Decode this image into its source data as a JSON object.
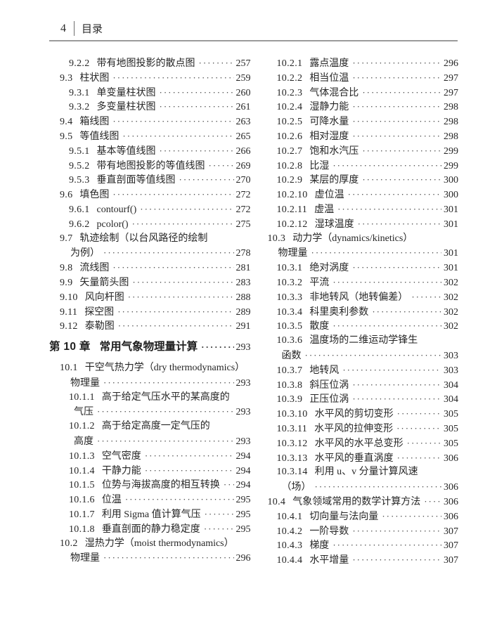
{
  "page": {
    "number": "4",
    "header_title": "目录"
  },
  "colors": {
    "text": "#262626",
    "header_rule": "#9b9b9b",
    "background": "#ffffff",
    "leader_dots": "#3d3d3d"
  },
  "toc": {
    "columns": {
      "left": [
        {
          "level": "l2",
          "num": "9.2.2",
          "text": "带有地图投影的散点图",
          "page": "257"
        },
        {
          "level": "l1",
          "num": "9.3",
          "text": "柱状图",
          "page": "259"
        },
        {
          "level": "l2",
          "num": "9.3.1",
          "text": "单变量柱状图",
          "page": "260"
        },
        {
          "level": "l2",
          "num": "9.3.2",
          "text": "多变量柱状图",
          "page": "261"
        },
        {
          "level": "l1",
          "num": "9.4",
          "text": "箱线图",
          "page": "263"
        },
        {
          "level": "l1",
          "num": "9.5",
          "text": "等值线图",
          "page": "265"
        },
        {
          "level": "l2",
          "num": "9.5.1",
          "text": "基本等值线图",
          "page": "266"
        },
        {
          "level": "l2",
          "num": "9.5.2",
          "text": "带有地图投影的等值线图",
          "page": "269"
        },
        {
          "level": "l2",
          "num": "9.5.3",
          "text": "垂直剖面等值线图",
          "page": "270"
        },
        {
          "level": "l1",
          "num": "9.6",
          "text": "填色图",
          "page": "272"
        },
        {
          "level": "l2",
          "num": "9.6.1",
          "text": "contourf()",
          "page": "272"
        },
        {
          "level": "l2",
          "num": "9.6.2",
          "text": "pcolor()",
          "page": "275"
        },
        {
          "level": "l1",
          "num": "9.7",
          "text": "轨迹绘制（以台风路径的绘制",
          "page": ""
        },
        {
          "level": "c1",
          "num": "",
          "text": "为例）",
          "page": "278"
        },
        {
          "level": "l1",
          "num": "9.8",
          "text": "流线图",
          "page": "281"
        },
        {
          "level": "l1",
          "num": "9.9",
          "text": "矢量箭头图",
          "page": "283"
        },
        {
          "level": "l1",
          "num": "9.10",
          "text": "风向杆图",
          "page": "288"
        },
        {
          "level": "l1",
          "num": "9.11",
          "text": "探空图",
          "page": "289"
        },
        {
          "level": "l1",
          "num": "9.12",
          "text": "泰勒图",
          "page": "291"
        },
        {
          "level": "chapter",
          "num": "第 10 章",
          "text": "常用气象物理量计算",
          "page": "293"
        },
        {
          "level": "l1",
          "num": "10.1",
          "text": "干空气热力学（dry thermodynamics）",
          "page": ""
        },
        {
          "level": "c1",
          "num": "",
          "text": "物理量",
          "page": "293"
        },
        {
          "level": "l2",
          "num": "10.1.1",
          "text": "高于给定气压水平的某高度的",
          "page": ""
        },
        {
          "level": "c2",
          "num": "",
          "text": "气压",
          "page": "293"
        },
        {
          "level": "l2",
          "num": "10.1.2",
          "text": "高于给定高度一定气压的",
          "page": ""
        },
        {
          "level": "c2",
          "num": "",
          "text": "高度",
          "page": "293"
        },
        {
          "level": "l2",
          "num": "10.1.3",
          "text": "空气密度",
          "page": "294"
        },
        {
          "level": "l2",
          "num": "10.1.4",
          "text": "干静力能",
          "page": "294"
        },
        {
          "level": "l2",
          "num": "10.1.5",
          "text": "位势与海拔高度的相互转换",
          "page": "294"
        },
        {
          "level": "l2",
          "num": "10.1.6",
          "text": "位温",
          "page": "295"
        },
        {
          "level": "l2",
          "num": "10.1.7",
          "text": "利用 Sigma 值计算气压",
          "page": "295"
        },
        {
          "level": "l2",
          "num": "10.1.8",
          "text": "垂直剖面的静力稳定度",
          "page": "295"
        },
        {
          "level": "l1",
          "num": "10.2",
          "text": "湿热力学（moist thermodynamics）",
          "page": ""
        },
        {
          "level": "c1",
          "num": "",
          "text": "物理量",
          "page": "296"
        }
      ],
      "right": [
        {
          "level": "l2",
          "num": "10.2.1",
          "text": "露点温度",
          "page": "296"
        },
        {
          "level": "l2",
          "num": "10.2.2",
          "text": "相当位温",
          "page": "297"
        },
        {
          "level": "l2",
          "num": "10.2.3",
          "text": "气体混合比",
          "page": "297"
        },
        {
          "level": "l2",
          "num": "10.2.4",
          "text": "湿静力能",
          "page": "298"
        },
        {
          "level": "l2",
          "num": "10.2.5",
          "text": "可降水量",
          "page": "298"
        },
        {
          "level": "l2",
          "num": "10.2.6",
          "text": "相对湿度",
          "page": "298"
        },
        {
          "level": "l2",
          "num": "10.2.7",
          "text": "饱和水汽压",
          "page": "299"
        },
        {
          "level": "l2",
          "num": "10.2.8",
          "text": "比湿",
          "page": "299"
        },
        {
          "level": "l2",
          "num": "10.2.9",
          "text": "某层的厚度",
          "page": "300"
        },
        {
          "level": "l2",
          "num": "10.2.10",
          "text": "虚位温",
          "page": "300"
        },
        {
          "level": "l2",
          "num": "10.2.11",
          "text": "虚温",
          "page": "301"
        },
        {
          "level": "l2",
          "num": "10.2.12",
          "text": "湿球温度",
          "page": "301"
        },
        {
          "level": "l1",
          "num": "10.3",
          "text": "动力学（dynamics/kinetics）",
          "page": ""
        },
        {
          "level": "c1",
          "num": "",
          "text": "物理量",
          "page": "301"
        },
        {
          "level": "l2",
          "num": "10.3.1",
          "text": "绝对涡度",
          "page": "301"
        },
        {
          "level": "l2",
          "num": "10.3.2",
          "text": "平流",
          "page": "302"
        },
        {
          "level": "l2",
          "num": "10.3.3",
          "text": "非地转风（地转偏差）",
          "page": "302"
        },
        {
          "level": "l2",
          "num": "10.3.4",
          "text": "科里奥利参数",
          "page": "302"
        },
        {
          "level": "l2",
          "num": "10.3.5",
          "text": "散度",
          "page": "302"
        },
        {
          "level": "l2",
          "num": "10.3.6",
          "text": "温度场的二维运动学锋生",
          "page": ""
        },
        {
          "level": "c2",
          "num": "",
          "text": "函数",
          "page": "303"
        },
        {
          "level": "l2",
          "num": "10.3.7",
          "text": "地转风",
          "page": "303"
        },
        {
          "level": "l2",
          "num": "10.3.8",
          "text": "斜压位涡",
          "page": "304"
        },
        {
          "level": "l2",
          "num": "10.3.9",
          "text": "正压位涡",
          "page": "304"
        },
        {
          "level": "l2",
          "num": "10.3.10",
          "text": "水平风的剪切变形",
          "page": "305"
        },
        {
          "level": "l2",
          "num": "10.3.11",
          "text": "水平风的拉伸变形",
          "page": "305"
        },
        {
          "level": "l2",
          "num": "10.3.12",
          "text": "水平风的水平总变形",
          "page": "305"
        },
        {
          "level": "l2",
          "num": "10.3.13",
          "text": "水平风的垂直涡度",
          "page": "306"
        },
        {
          "level": "l2",
          "num": "10.3.14",
          "text": "利用 u、v 分量计算风速",
          "page": ""
        },
        {
          "level": "c2",
          "num": "",
          "text": "（场）",
          "page": "306"
        },
        {
          "level": "l1",
          "num": "10.4",
          "text": "气象领域常用的数学计算方法",
          "page": "306"
        },
        {
          "level": "l2",
          "num": "10.4.1",
          "text": "切向量与法向量",
          "page": "306"
        },
        {
          "level": "l2",
          "num": "10.4.2",
          "text": "一阶导数",
          "page": "307"
        },
        {
          "level": "l2",
          "num": "10.4.3",
          "text": "梯度",
          "page": "307"
        },
        {
          "level": "l2",
          "num": "10.4.4",
          "text": "水平增量",
          "page": "307"
        }
      ]
    }
  }
}
